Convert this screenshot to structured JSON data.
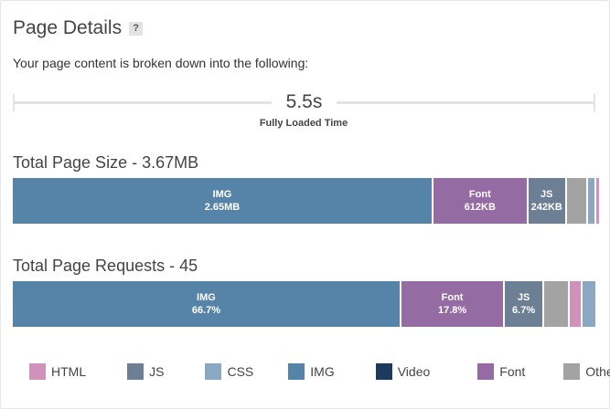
{
  "header": {
    "title": "Page Details",
    "help_label": "?",
    "subtitle": "Your page content is broken down into the following:"
  },
  "timing": {
    "value": "5.5s",
    "label": "Fully Loaded Time"
  },
  "colors": {
    "HTML": "#d291bc",
    "JS": "#6d7f94",
    "CSS": "#8aa8c2",
    "IMG": "#5683a8",
    "Video": "#1b3a5c",
    "Font": "#946ba3",
    "Other": "#a3a3a3"
  },
  "size_section": {
    "title": "Total Page Size - 3.67MB",
    "segments": [
      {
        "type": "IMG",
        "name": "IMG",
        "value": "2.65MB",
        "share": 0.722
      },
      {
        "type": "Font",
        "name": "Font",
        "value": "612KB",
        "share": 0.163
      },
      {
        "type": "JS",
        "name": "JS",
        "value": "242KB",
        "share": 0.066
      },
      {
        "type": "Other",
        "name": "",
        "value": "",
        "share": 0.037
      },
      {
        "type": "CSS",
        "name": "",
        "value": "",
        "share": 0.013
      },
      {
        "type": "HTML",
        "name": "",
        "value": "",
        "share": 0.005
      }
    ]
  },
  "requests_section": {
    "title": "Total Page Requests - 45",
    "segments": [
      {
        "type": "IMG",
        "name": "IMG",
        "value": "66.7%",
        "share": 0.667
      },
      {
        "type": "Font",
        "name": "Font",
        "value": "17.8%",
        "share": 0.178
      },
      {
        "type": "JS",
        "name": "JS",
        "value": "6.7%",
        "share": 0.067
      },
      {
        "type": "Other",
        "name": "",
        "value": "",
        "share": 0.044
      },
      {
        "type": "HTML",
        "name": "",
        "value": "",
        "share": 0.022
      },
      {
        "type": "CSS",
        "name": "",
        "value": "",
        "share": 0.022
      }
    ]
  },
  "legend": [
    {
      "label": "HTML",
      "color": "#d291bc"
    },
    {
      "label": "JS",
      "color": "#6d7f94"
    },
    {
      "label": "CSS",
      "color": "#8aa8c2"
    },
    {
      "label": "IMG",
      "color": "#5683a8"
    },
    {
      "label": "Video",
      "color": "#1b3a5c"
    },
    {
      "label": "Font",
      "color": "#946ba3"
    },
    {
      "label": "Other",
      "color": "#a3a3a3"
    }
  ]
}
